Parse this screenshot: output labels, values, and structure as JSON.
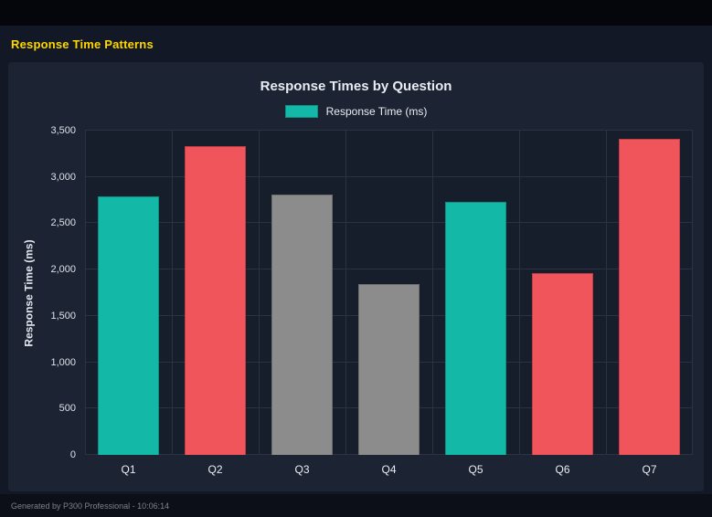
{
  "header": {
    "title": "Response Time Patterns",
    "accent_color": "#ffd700"
  },
  "footer": {
    "text": "Generated by P300 Professional - 10:06:14"
  },
  "chart_data": {
    "type": "bar",
    "title": "Response Times by Question",
    "legend": "Response Time (ms)",
    "legend_position": "top",
    "ylabel": "Response Time (ms)",
    "xlabel": "",
    "categories": [
      "Q1",
      "Q2",
      "Q3",
      "Q4",
      "Q5",
      "Q6",
      "Q7"
    ],
    "values": [
      2795,
      3330,
      2810,
      1845,
      2735,
      1960,
      3410
    ],
    "bar_colors": [
      "#14b8a6",
      "#f0555c",
      "#8c8c8c",
      "#8c8c8c",
      "#14b8a6",
      "#f0555c",
      "#f0555c"
    ],
    "bar_border_colors": [
      "#0d8f82",
      "#c23e46",
      "#6e6e6e",
      "#6e6e6e",
      "#0d8f82",
      "#c23e46",
      "#c23e46"
    ],
    "legend_color": "#14b8a6",
    "legend_border_color": "#0d8f82",
    "ylim": [
      0,
      3500
    ],
    "ytick_step": 500,
    "ytick_labels": [
      "0",
      "500",
      "1,000",
      "1,500",
      "2,000",
      "2,500",
      "3,000",
      "3,500"
    ],
    "grid": true
  }
}
